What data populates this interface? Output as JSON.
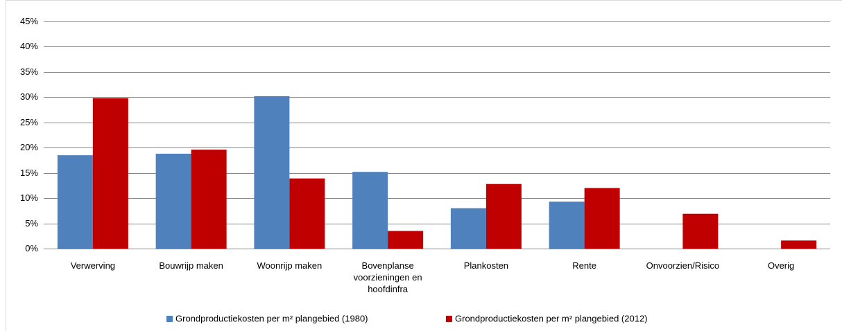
{
  "chart_data": {
    "type": "bar",
    "categories": [
      "Verwerving",
      "Bouwrijp maken",
      "Woonrijp maken",
      "Bovenplanse voorzieningen en hoofdinfra",
      "Plankosten",
      "Rente",
      "Onvoorzien/Risico",
      "Overig"
    ],
    "series": [
      {
        "name": "Grondproductiekosten per m² plangebied (1980)",
        "color": "#4f81bd",
        "values": [
          18.5,
          18.8,
          30.2,
          15.2,
          8.0,
          9.3,
          null,
          null
        ]
      },
      {
        "name": "Grondproductiekosten per m² plangebied (2012)",
        "color": "#c00000",
        "values": [
          29.8,
          19.6,
          13.9,
          3.5,
          12.8,
          12.0,
          6.9,
          1.6
        ]
      }
    ],
    "ylim": [
      0,
      45
    ],
    "yticks": [
      {
        "value": 0,
        "label": "0%"
      },
      {
        "value": 5,
        "label": "5%"
      },
      {
        "value": 10,
        "label": "10%"
      },
      {
        "value": 15,
        "label": "15%"
      },
      {
        "value": 20,
        "label": "20%"
      },
      {
        "value": 25,
        "label": "25%"
      },
      {
        "value": 30,
        "label": "30%"
      },
      {
        "value": 35,
        "label": "35%"
      },
      {
        "value": 40,
        "label": "40%"
      },
      {
        "value": 45,
        "label": "45%"
      }
    ],
    "grid": true,
    "legend": "bottom"
  }
}
